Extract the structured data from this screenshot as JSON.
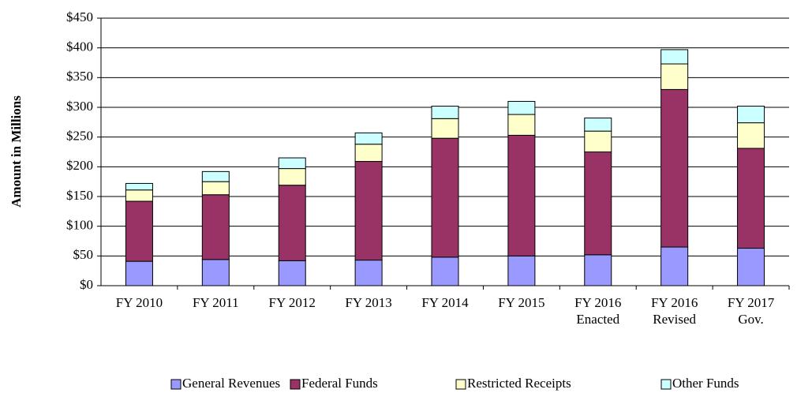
{
  "chart_data": {
    "type": "stacked-bar",
    "y_axis_label": "Amount in Millions",
    "categories": [
      "FY 2010",
      "FY 2011",
      "FY 2012",
      "FY 2013",
      "FY 2014",
      "FY 2015",
      "FY 2016 Enacted",
      "FY 2016 Revised",
      "FY 2017 Gov."
    ],
    "series": [
      {
        "name": "General Revenues",
        "color": "#9999ff",
        "values": [
          41,
          44,
          42,
          43,
          48,
          50,
          52,
          65,
          63
        ]
      },
      {
        "name": "Federal Funds",
        "color": "#993366",
        "values": [
          101,
          109,
          127,
          166,
          200,
          203,
          173,
          265,
          168
        ]
      },
      {
        "name": "Restricted Receipts",
        "color": "#ffffcc",
        "values": [
          19,
          22,
          28,
          29,
          33,
          35,
          35,
          43,
          43
        ]
      },
      {
        "name": "Other Funds",
        "color": "#ccffff",
        "values": [
          11,
          17,
          18,
          19,
          21,
          22,
          22,
          24,
          28
        ]
      }
    ],
    "ylim": [
      0,
      450
    ],
    "yticks": [
      {
        "value": 0,
        "label": "$0"
      },
      {
        "value": 50,
        "label": "$50"
      },
      {
        "value": 100,
        "label": "$100"
      },
      {
        "value": 150,
        "label": "$150"
      },
      {
        "value": 200,
        "label": "$200"
      },
      {
        "value": 250,
        "label": "$250"
      },
      {
        "value": 300,
        "label": "$300"
      },
      {
        "value": 350,
        "label": "$350"
      },
      {
        "value": 400,
        "label": "$400"
      },
      {
        "value": 450,
        "label": "$450"
      }
    ],
    "grid": true,
    "legend": "bottom"
  }
}
